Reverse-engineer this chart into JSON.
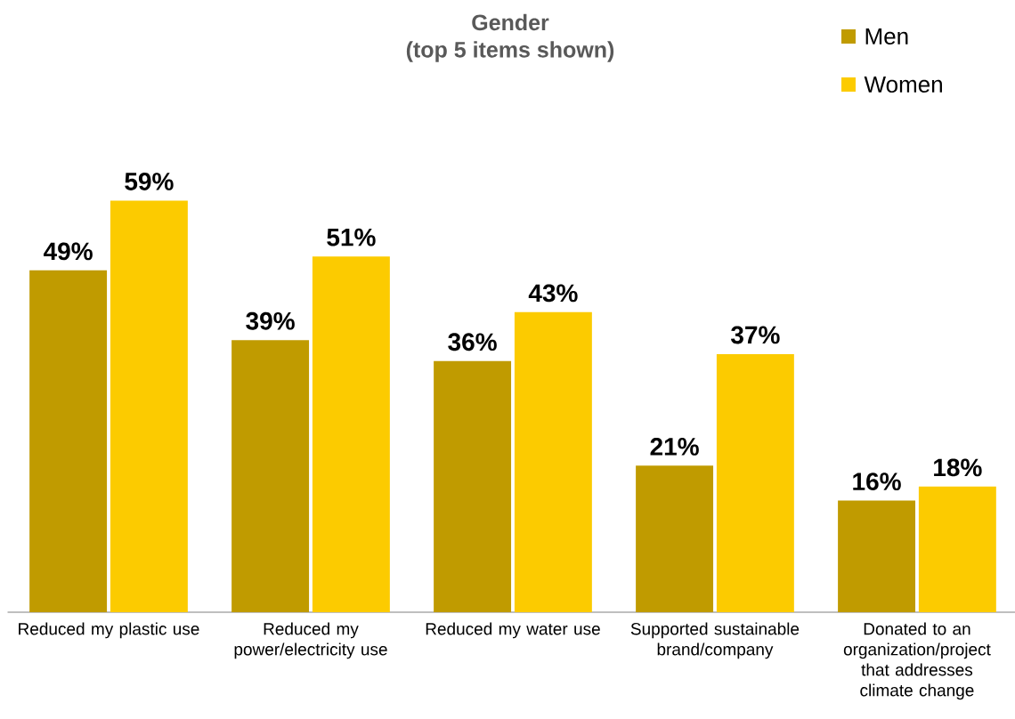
{
  "chart_data": {
    "type": "bar",
    "title": "Gender",
    "subtitle": "(top 5 items shown)",
    "categories": [
      "Reduced my plastic use",
      "Reduced my power/electricity use",
      "Reduced my water use",
      "Supported sustainable brand/company",
      "Donated to an organization/project that addresses climate change"
    ],
    "series": [
      {
        "name": "Men",
        "color": "#c09b00",
        "values": [
          49,
          39,
          36,
          21,
          16
        ],
        "value_labels": [
          "49%",
          "39%",
          "36%",
          "21%",
          "16%"
        ]
      },
      {
        "name": "Women",
        "color": "#fccb00",
        "values": [
          59,
          51,
          43,
          37,
          18
        ],
        "value_labels": [
          "59%",
          "51%",
          "43%",
          "37%",
          "18%"
        ]
      }
    ],
    "legend": "top right",
    "grid": false
  }
}
